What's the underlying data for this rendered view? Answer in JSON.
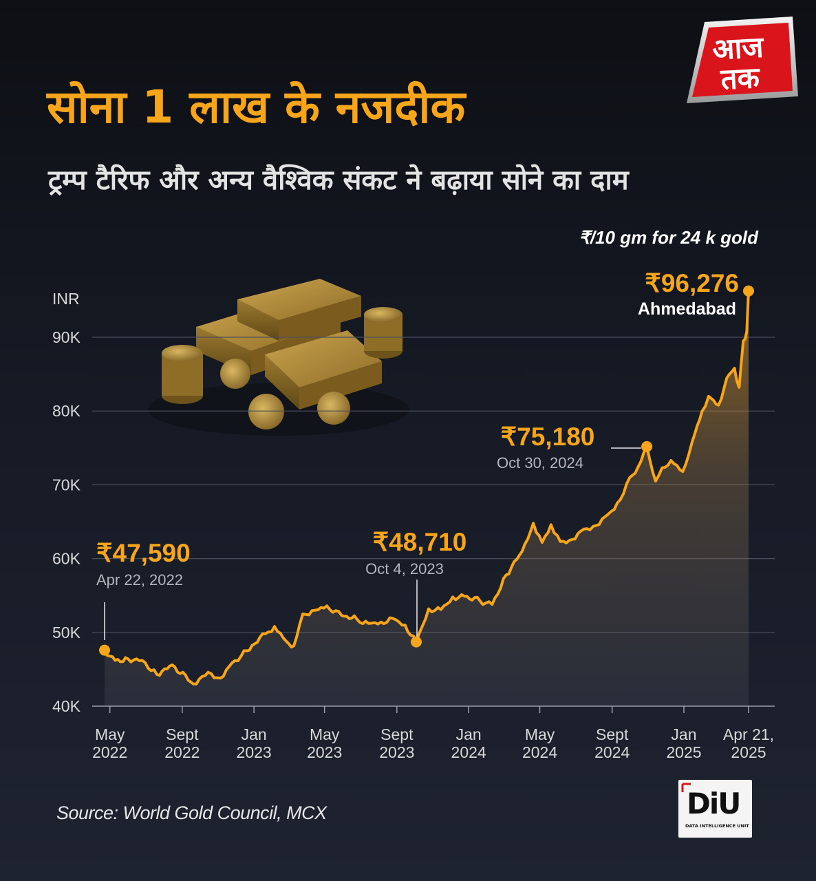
{
  "header": {
    "title": "सोना 1 लाख के नजदीक",
    "subtitle": "ट्रम्प टैरिफ और अन्य वैश्विक संकट ने बढ़ाया सोने का दाम"
  },
  "unit_note": "₹/10 gm for 24 k gold",
  "source": "Source: World Gold Council, MCX",
  "logos": {
    "aajtak": "आज तक",
    "diu": "DiU",
    "diu_sub": "DATA INTELLIGENCE UNIT"
  },
  "colors": {
    "accent": "#f7a51b",
    "background": "#12151c",
    "grid": "#4a4f5c"
  },
  "chart_data": {
    "type": "line",
    "ylabel": "INR",
    "ylim": [
      40000,
      98000
    ],
    "y_ticks": [
      {
        "value": 40000,
        "label": "40K"
      },
      {
        "value": 50000,
        "label": "50K"
      },
      {
        "value": 60000,
        "label": "60K"
      },
      {
        "value": 70000,
        "label": "70K"
      },
      {
        "value": 80000,
        "label": "80K"
      },
      {
        "value": 90000,
        "label": "90K"
      }
    ],
    "x_range": [
      "2022-04-22",
      "2025-04-21"
    ],
    "x_ticks": [
      {
        "date": "2022-05-01",
        "label": [
          "May",
          "2022"
        ]
      },
      {
        "date": "2022-09-01",
        "label": [
          "Sept",
          "2022"
        ]
      },
      {
        "date": "2023-01-01",
        "label": [
          "Jan",
          "2023"
        ]
      },
      {
        "date": "2023-05-01",
        "label": [
          "May",
          "2023"
        ]
      },
      {
        "date": "2023-09-01",
        "label": [
          "Sept",
          "2023"
        ]
      },
      {
        "date": "2024-01-01",
        "label": [
          "Jan",
          "2024"
        ]
      },
      {
        "date": "2024-05-01",
        "label": [
          "May",
          "2024"
        ]
      },
      {
        "date": "2024-09-01",
        "label": [
          "Sept",
          "2024"
        ]
      },
      {
        "date": "2025-01-01",
        "label": [
          "Jan",
          "2025"
        ]
      },
      {
        "date": "2025-04-21",
        "label": [
          "Apr 21,",
          "2025"
        ]
      }
    ],
    "grid": true,
    "series": [
      {
        "points": [
          [
            "2022-04-22",
            47590
          ],
          [
            "2022-05-10",
            46200
          ],
          [
            "2022-06-01",
            46400
          ],
          [
            "2022-06-25",
            46200
          ],
          [
            "2022-07-20",
            44300
          ],
          [
            "2022-08-15",
            45600
          ],
          [
            "2022-09-20",
            43000
          ],
          [
            "2022-10-15",
            44600
          ],
          [
            "2022-11-05",
            43800
          ],
          [
            "2022-11-25",
            45900
          ],
          [
            "2022-12-20",
            47500
          ],
          [
            "2023-01-20",
            49800
          ],
          [
            "2023-02-05",
            50800
          ],
          [
            "2023-02-25",
            48800
          ],
          [
            "2023-03-10",
            48200
          ],
          [
            "2023-03-25",
            52500
          ],
          [
            "2023-04-15",
            53000
          ],
          [
            "2023-05-05",
            53600
          ],
          [
            "2023-05-30",
            52300
          ],
          [
            "2023-06-25",
            51800
          ],
          [
            "2023-07-15",
            51200
          ],
          [
            "2023-08-05",
            51400
          ],
          [
            "2023-08-25",
            51900
          ],
          [
            "2023-09-15",
            51000
          ],
          [
            "2023-10-04",
            48710
          ],
          [
            "2023-10-25",
            53200
          ],
          [
            "2023-11-15",
            53100
          ],
          [
            "2023-12-05",
            54800
          ],
          [
            "2023-12-25",
            54900
          ],
          [
            "2024-01-20",
            54300
          ],
          [
            "2024-02-10",
            53800
          ],
          [
            "2024-03-05",
            57800
          ],
          [
            "2024-04-01",
            61000
          ],
          [
            "2024-04-20",
            64800
          ],
          [
            "2024-05-05",
            62200
          ],
          [
            "2024-05-20",
            64600
          ],
          [
            "2024-06-05",
            62300
          ],
          [
            "2024-06-25",
            62600
          ],
          [
            "2024-07-15",
            64000
          ],
          [
            "2024-08-05",
            64500
          ],
          [
            "2024-08-25",
            66000
          ],
          [
            "2024-09-15",
            68000
          ],
          [
            "2024-10-01",
            71000
          ],
          [
            "2024-10-15",
            72400
          ],
          [
            "2024-10-30",
            75180
          ],
          [
            "2024-11-14",
            70500
          ],
          [
            "2024-11-25",
            72300
          ],
          [
            "2024-12-10",
            73300
          ],
          [
            "2024-12-30",
            71800
          ],
          [
            "2025-01-15",
            75800
          ],
          [
            "2025-02-01",
            80000
          ],
          [
            "2025-02-12",
            82000
          ],
          [
            "2025-03-01",
            80800
          ],
          [
            "2025-03-15",
            84500
          ],
          [
            "2025-03-28",
            85800
          ],
          [
            "2025-04-05",
            83200
          ],
          [
            "2025-04-12",
            89500
          ],
          [
            "2025-04-18",
            90800
          ],
          [
            "2025-04-21",
            96276
          ]
        ]
      }
    ],
    "annotations": [
      {
        "date": "2022-04-22",
        "value": 47590,
        "label": "₹47,590",
        "sublabel": "Apr 22, 2022"
      },
      {
        "date": "2023-10-04",
        "value": 48710,
        "label": "₹48,710",
        "sublabel": "Oct 4, 2023"
      },
      {
        "date": "2024-10-30",
        "value": 75180,
        "label": "₹75,180",
        "sublabel": "Oct 30, 2024"
      },
      {
        "date": "2025-04-21",
        "value": 96276,
        "label": "₹96,276",
        "sublabel": "Ahmedabad"
      }
    ]
  }
}
